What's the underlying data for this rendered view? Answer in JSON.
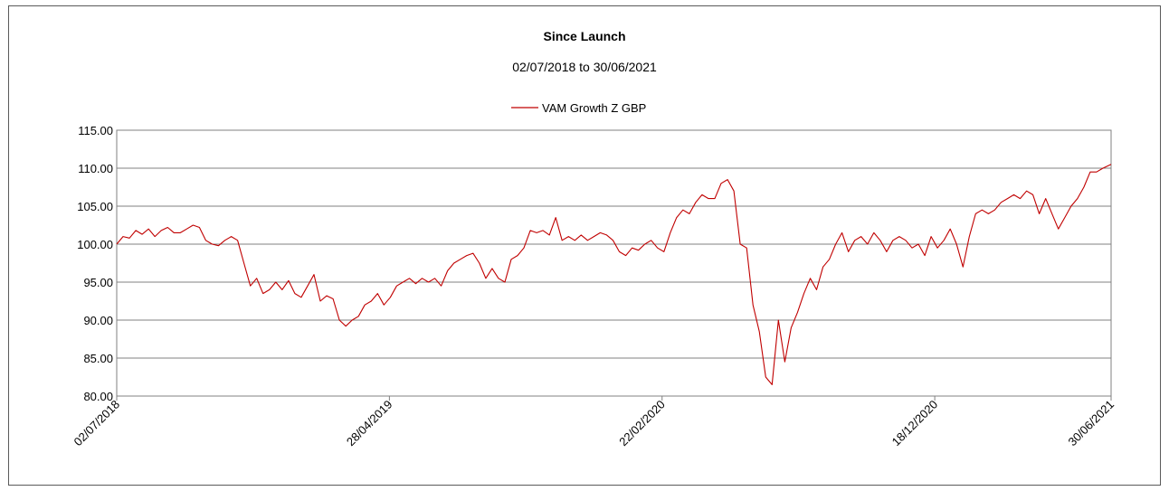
{
  "chart_data": {
    "type": "line",
    "title": "Since Launch",
    "subtitle": "02/07/2018 to 30/06/2021",
    "xlabel": "",
    "ylabel": "",
    "ylim": [
      80,
      115
    ],
    "yticks": [
      "80.00",
      "85.00",
      "90.00",
      "95.00",
      "100.00",
      "105.00",
      "110.00",
      "115.00"
    ],
    "xlim": [
      "2018-07-02",
      "2021-06-30"
    ],
    "xticks": [
      {
        "date": "2018-07-02",
        "label": "02/07/2018"
      },
      {
        "date": "2019-04-28",
        "label": "28/04/2019"
      },
      {
        "date": "2020-02-22",
        "label": "22/02/2020"
      },
      {
        "date": "2020-12-18",
        "label": "18/12/2020"
      },
      {
        "date": "2021-06-30",
        "label": "30/06/2021"
      }
    ],
    "grid": true,
    "legend_position": "top-center",
    "series": [
      {
        "name": "VAM Growth Z GBP",
        "color": "#c00000",
        "points": [
          [
            "2018-07-02",
            100.0
          ],
          [
            "2018-07-09",
            101.0
          ],
          [
            "2018-07-16",
            100.8
          ],
          [
            "2018-07-23",
            101.8
          ],
          [
            "2018-07-30",
            101.3
          ],
          [
            "2018-08-06",
            102.0
          ],
          [
            "2018-08-13",
            101.0
          ],
          [
            "2018-08-20",
            101.8
          ],
          [
            "2018-08-27",
            102.2
          ],
          [
            "2018-09-03",
            101.5
          ],
          [
            "2018-09-10",
            101.5
          ],
          [
            "2018-09-17",
            102.0
          ],
          [
            "2018-09-24",
            102.5
          ],
          [
            "2018-10-01",
            102.2
          ],
          [
            "2018-10-08",
            100.5
          ],
          [
            "2018-10-15",
            100.0
          ],
          [
            "2018-10-22",
            99.8
          ],
          [
            "2018-10-29",
            100.5
          ],
          [
            "2018-11-05",
            101.0
          ],
          [
            "2018-11-12",
            100.5
          ],
          [
            "2018-11-19",
            97.5
          ],
          [
            "2018-11-26",
            94.5
          ],
          [
            "2018-12-03",
            95.5
          ],
          [
            "2018-12-10",
            93.5
          ],
          [
            "2018-12-17",
            94.0
          ],
          [
            "2018-12-24",
            95.0
          ],
          [
            "2018-12-31",
            94.0
          ],
          [
            "2019-01-07",
            95.2
          ],
          [
            "2019-01-14",
            93.5
          ],
          [
            "2019-01-21",
            93.0
          ],
          [
            "2019-01-28",
            94.5
          ],
          [
            "2019-02-04",
            96.0
          ],
          [
            "2019-02-11",
            92.5
          ],
          [
            "2019-02-18",
            93.2
          ],
          [
            "2019-02-25",
            92.8
          ],
          [
            "2019-03-04",
            90.0
          ],
          [
            "2019-03-11",
            89.2
          ],
          [
            "2019-03-18",
            90.0
          ],
          [
            "2019-03-25",
            90.5
          ],
          [
            "2019-04-01",
            92.0
          ],
          [
            "2019-04-08",
            92.5
          ],
          [
            "2019-04-15",
            93.5
          ],
          [
            "2019-04-22",
            92.0
          ],
          [
            "2019-04-29",
            93.0
          ],
          [
            "2019-05-06",
            94.5
          ],
          [
            "2019-05-13",
            95.0
          ],
          [
            "2019-05-20",
            95.5
          ],
          [
            "2019-05-27",
            94.8
          ],
          [
            "2019-06-03",
            95.5
          ],
          [
            "2019-06-10",
            95.0
          ],
          [
            "2019-06-17",
            95.5
          ],
          [
            "2019-06-24",
            94.5
          ],
          [
            "2019-07-01",
            96.5
          ],
          [
            "2019-07-08",
            97.5
          ],
          [
            "2019-07-15",
            98.0
          ],
          [
            "2019-07-22",
            98.5
          ],
          [
            "2019-07-29",
            98.8
          ],
          [
            "2019-08-05",
            97.5
          ],
          [
            "2019-08-12",
            95.5
          ],
          [
            "2019-08-19",
            96.8
          ],
          [
            "2019-08-26",
            95.5
          ],
          [
            "2019-09-02",
            95.0
          ],
          [
            "2019-09-09",
            98.0
          ],
          [
            "2019-09-16",
            98.5
          ],
          [
            "2019-09-23",
            99.5
          ],
          [
            "2019-09-30",
            101.8
          ],
          [
            "2019-10-07",
            101.5
          ],
          [
            "2019-10-14",
            101.8
          ],
          [
            "2019-10-21",
            101.2
          ],
          [
            "2019-10-28",
            103.5
          ],
          [
            "2019-11-04",
            100.5
          ],
          [
            "2019-11-11",
            101.0
          ],
          [
            "2019-11-18",
            100.5
          ],
          [
            "2019-11-25",
            101.2
          ],
          [
            "2019-12-02",
            100.5
          ],
          [
            "2019-12-09",
            101.0
          ],
          [
            "2019-12-16",
            101.5
          ],
          [
            "2019-12-23",
            101.2
          ],
          [
            "2019-12-30",
            100.5
          ],
          [
            "2020-01-06",
            99.0
          ],
          [
            "2020-01-13",
            98.5
          ],
          [
            "2020-01-20",
            99.5
          ],
          [
            "2020-01-27",
            99.2
          ],
          [
            "2020-02-03",
            100.0
          ],
          [
            "2020-02-10",
            100.5
          ],
          [
            "2020-02-17",
            99.5
          ],
          [
            "2020-02-24",
            99.0
          ],
          [
            "2020-03-02",
            101.5
          ],
          [
            "2020-03-09",
            103.5
          ],
          [
            "2020-03-16",
            104.5
          ],
          [
            "2020-03-23",
            104.0
          ],
          [
            "2020-03-30",
            105.5
          ],
          [
            "2020-04-06",
            106.5
          ],
          [
            "2020-04-13",
            106.0
          ],
          [
            "2020-04-20",
            106.0
          ],
          [
            "2020-04-27",
            108.0
          ],
          [
            "2020-05-04",
            108.5
          ],
          [
            "2020-05-11",
            107.0
          ],
          [
            "2020-05-18",
            100.0
          ],
          [
            "2020-05-25",
            99.5
          ],
          [
            "2020-06-01",
            92.0
          ],
          [
            "2020-06-08",
            88.5
          ],
          [
            "2020-06-15",
            82.5
          ],
          [
            "2020-06-22",
            81.5
          ],
          [
            "2020-06-29",
            90.0
          ],
          [
            "2020-07-06",
            84.5
          ],
          [
            "2020-07-13",
            89.0
          ],
          [
            "2020-07-20",
            91.0
          ],
          [
            "2020-07-27",
            93.5
          ],
          [
            "2020-08-03",
            95.5
          ],
          [
            "2020-08-10",
            94.0
          ],
          [
            "2020-08-17",
            97.0
          ],
          [
            "2020-08-24",
            98.0
          ],
          [
            "2020-08-31",
            100.0
          ],
          [
            "2020-09-07",
            101.5
          ],
          [
            "2020-09-14",
            99.0
          ],
          [
            "2020-09-21",
            100.5
          ],
          [
            "2020-09-28",
            101.0
          ],
          [
            "2020-10-05",
            100.0
          ],
          [
            "2020-10-12",
            101.5
          ],
          [
            "2020-10-19",
            100.5
          ],
          [
            "2020-10-26",
            99.0
          ],
          [
            "2020-11-02",
            100.5
          ],
          [
            "2020-11-09",
            101.0
          ],
          [
            "2020-11-16",
            100.5
          ],
          [
            "2020-11-23",
            99.5
          ],
          [
            "2020-11-30",
            100.0
          ],
          [
            "2020-12-07",
            98.5
          ],
          [
            "2020-12-14",
            101.0
          ],
          [
            "2020-12-21",
            99.5
          ],
          [
            "2020-12-28",
            100.5
          ],
          [
            "2021-01-04",
            102.0
          ],
          [
            "2021-01-11",
            100.0
          ],
          [
            "2021-01-18",
            97.0
          ],
          [
            "2021-01-25",
            101.0
          ],
          [
            "2021-02-01",
            104.0
          ],
          [
            "2021-02-08",
            104.5
          ],
          [
            "2021-02-15",
            104.0
          ],
          [
            "2021-02-22",
            104.5
          ],
          [
            "2021-03-01",
            105.5
          ],
          [
            "2021-03-08",
            106.0
          ],
          [
            "2021-03-15",
            106.5
          ],
          [
            "2021-03-22",
            106.0
          ],
          [
            "2021-03-29",
            107.0
          ],
          [
            "2021-04-05",
            106.5
          ],
          [
            "2021-04-12",
            104.0
          ],
          [
            "2021-04-19",
            106.0
          ],
          [
            "2021-04-26",
            104.0
          ],
          [
            "2021-05-03",
            102.0
          ],
          [
            "2021-05-10",
            103.5
          ],
          [
            "2021-05-17",
            105.0
          ],
          [
            "2021-05-24",
            106.0
          ],
          [
            "2021-05-31",
            107.5
          ],
          [
            "2021-06-07",
            109.5
          ],
          [
            "2021-06-14",
            109.5
          ],
          [
            "2021-06-21",
            110.0
          ],
          [
            "2021-06-30",
            110.5
          ]
        ]
      }
    ]
  }
}
